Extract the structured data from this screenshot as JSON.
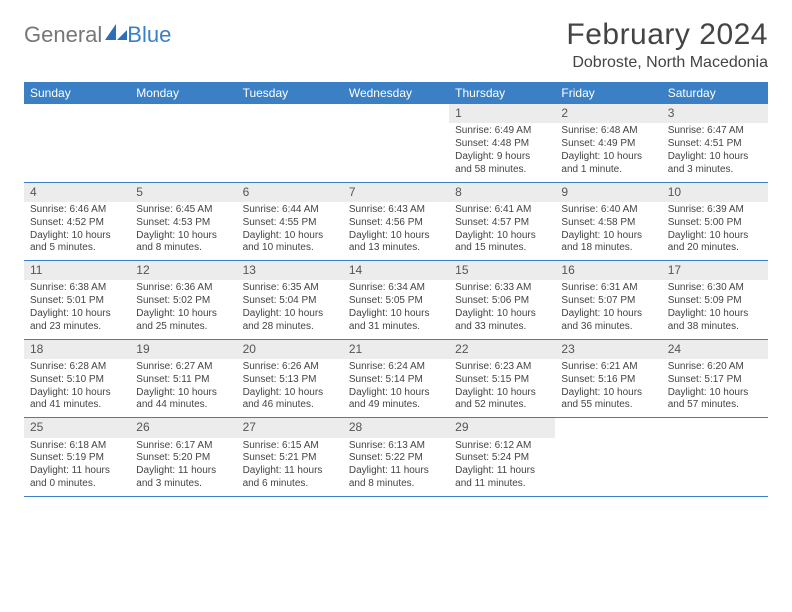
{
  "brand": {
    "part1": "General",
    "part2": "Blue"
  },
  "title": "February 2024",
  "location": "Dobroste, North Macedonia",
  "colors": {
    "header_bg": "#3b7fc4",
    "header_text": "#ffffff",
    "daynum_bg": "#ececec",
    "text": "#3a3a3a",
    "rule": "#3b7fc4",
    "page_bg": "#ffffff"
  },
  "font": {
    "family": "Arial",
    "title_size_pt": 22,
    "location_size_pt": 12,
    "header_size_pt": 9,
    "body_size_pt": 7.5
  },
  "day_names": [
    "Sunday",
    "Monday",
    "Tuesday",
    "Wednesday",
    "Thursday",
    "Friday",
    "Saturday"
  ],
  "weeks": [
    [
      {
        "n": "",
        "sr": "",
        "ss": "",
        "dl": ""
      },
      {
        "n": "",
        "sr": "",
        "ss": "",
        "dl": ""
      },
      {
        "n": "",
        "sr": "",
        "ss": "",
        "dl": ""
      },
      {
        "n": "",
        "sr": "",
        "ss": "",
        "dl": ""
      },
      {
        "n": "1",
        "sr": "Sunrise: 6:49 AM",
        "ss": "Sunset: 4:48 PM",
        "dl": "Daylight: 9 hours and 58 minutes."
      },
      {
        "n": "2",
        "sr": "Sunrise: 6:48 AM",
        "ss": "Sunset: 4:49 PM",
        "dl": "Daylight: 10 hours and 1 minute."
      },
      {
        "n": "3",
        "sr": "Sunrise: 6:47 AM",
        "ss": "Sunset: 4:51 PM",
        "dl": "Daylight: 10 hours and 3 minutes."
      }
    ],
    [
      {
        "n": "4",
        "sr": "Sunrise: 6:46 AM",
        "ss": "Sunset: 4:52 PM",
        "dl": "Daylight: 10 hours and 5 minutes."
      },
      {
        "n": "5",
        "sr": "Sunrise: 6:45 AM",
        "ss": "Sunset: 4:53 PM",
        "dl": "Daylight: 10 hours and 8 minutes."
      },
      {
        "n": "6",
        "sr": "Sunrise: 6:44 AM",
        "ss": "Sunset: 4:55 PM",
        "dl": "Daylight: 10 hours and 10 minutes."
      },
      {
        "n": "7",
        "sr": "Sunrise: 6:43 AM",
        "ss": "Sunset: 4:56 PM",
        "dl": "Daylight: 10 hours and 13 minutes."
      },
      {
        "n": "8",
        "sr": "Sunrise: 6:41 AM",
        "ss": "Sunset: 4:57 PM",
        "dl": "Daylight: 10 hours and 15 minutes."
      },
      {
        "n": "9",
        "sr": "Sunrise: 6:40 AM",
        "ss": "Sunset: 4:58 PM",
        "dl": "Daylight: 10 hours and 18 minutes."
      },
      {
        "n": "10",
        "sr": "Sunrise: 6:39 AM",
        "ss": "Sunset: 5:00 PM",
        "dl": "Daylight: 10 hours and 20 minutes."
      }
    ],
    [
      {
        "n": "11",
        "sr": "Sunrise: 6:38 AM",
        "ss": "Sunset: 5:01 PM",
        "dl": "Daylight: 10 hours and 23 minutes."
      },
      {
        "n": "12",
        "sr": "Sunrise: 6:36 AM",
        "ss": "Sunset: 5:02 PM",
        "dl": "Daylight: 10 hours and 25 minutes."
      },
      {
        "n": "13",
        "sr": "Sunrise: 6:35 AM",
        "ss": "Sunset: 5:04 PM",
        "dl": "Daylight: 10 hours and 28 minutes."
      },
      {
        "n": "14",
        "sr": "Sunrise: 6:34 AM",
        "ss": "Sunset: 5:05 PM",
        "dl": "Daylight: 10 hours and 31 minutes."
      },
      {
        "n": "15",
        "sr": "Sunrise: 6:33 AM",
        "ss": "Sunset: 5:06 PM",
        "dl": "Daylight: 10 hours and 33 minutes."
      },
      {
        "n": "16",
        "sr": "Sunrise: 6:31 AM",
        "ss": "Sunset: 5:07 PM",
        "dl": "Daylight: 10 hours and 36 minutes."
      },
      {
        "n": "17",
        "sr": "Sunrise: 6:30 AM",
        "ss": "Sunset: 5:09 PM",
        "dl": "Daylight: 10 hours and 38 minutes."
      }
    ],
    [
      {
        "n": "18",
        "sr": "Sunrise: 6:28 AM",
        "ss": "Sunset: 5:10 PM",
        "dl": "Daylight: 10 hours and 41 minutes."
      },
      {
        "n": "19",
        "sr": "Sunrise: 6:27 AM",
        "ss": "Sunset: 5:11 PM",
        "dl": "Daylight: 10 hours and 44 minutes."
      },
      {
        "n": "20",
        "sr": "Sunrise: 6:26 AM",
        "ss": "Sunset: 5:13 PM",
        "dl": "Daylight: 10 hours and 46 minutes."
      },
      {
        "n": "21",
        "sr": "Sunrise: 6:24 AM",
        "ss": "Sunset: 5:14 PM",
        "dl": "Daylight: 10 hours and 49 minutes."
      },
      {
        "n": "22",
        "sr": "Sunrise: 6:23 AM",
        "ss": "Sunset: 5:15 PM",
        "dl": "Daylight: 10 hours and 52 minutes."
      },
      {
        "n": "23",
        "sr": "Sunrise: 6:21 AM",
        "ss": "Sunset: 5:16 PM",
        "dl": "Daylight: 10 hours and 55 minutes."
      },
      {
        "n": "24",
        "sr": "Sunrise: 6:20 AM",
        "ss": "Sunset: 5:17 PM",
        "dl": "Daylight: 10 hours and 57 minutes."
      }
    ],
    [
      {
        "n": "25",
        "sr": "Sunrise: 6:18 AM",
        "ss": "Sunset: 5:19 PM",
        "dl": "Daylight: 11 hours and 0 minutes."
      },
      {
        "n": "26",
        "sr": "Sunrise: 6:17 AM",
        "ss": "Sunset: 5:20 PM",
        "dl": "Daylight: 11 hours and 3 minutes."
      },
      {
        "n": "27",
        "sr": "Sunrise: 6:15 AM",
        "ss": "Sunset: 5:21 PM",
        "dl": "Daylight: 11 hours and 6 minutes."
      },
      {
        "n": "28",
        "sr": "Sunrise: 6:13 AM",
        "ss": "Sunset: 5:22 PM",
        "dl": "Daylight: 11 hours and 8 minutes."
      },
      {
        "n": "29",
        "sr": "Sunrise: 6:12 AM",
        "ss": "Sunset: 5:24 PM",
        "dl": "Daylight: 11 hours and 11 minutes."
      },
      {
        "n": "",
        "sr": "",
        "ss": "",
        "dl": ""
      },
      {
        "n": "",
        "sr": "",
        "ss": "",
        "dl": ""
      }
    ]
  ]
}
